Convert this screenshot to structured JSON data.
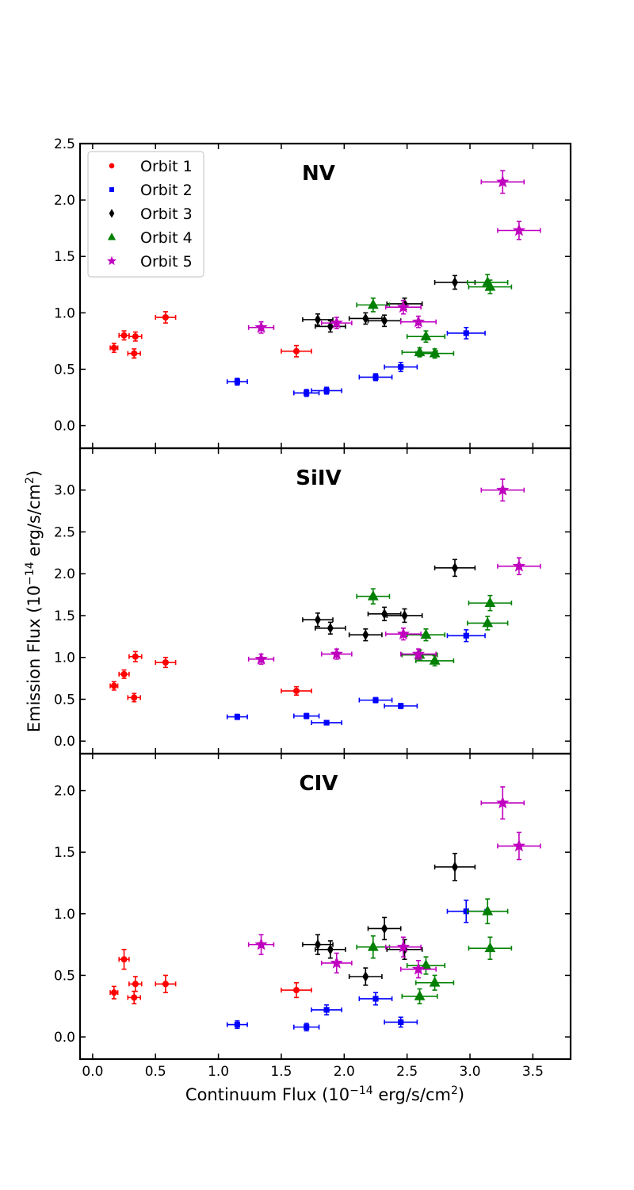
{
  "chart_data": {
    "type": "scatter",
    "xlabel": "Continuum Flux",
    "ylabel": "Emission Flux",
    "label_exponent": "−14",
    "label_prefix": "(10",
    "label_unit": " erg/s/cm",
    "label_unit_sup": "2",
    "label_suffix": ")",
    "xlim": [
      -0.1,
      3.8
    ],
    "xticks": [
      "0.0",
      "0.5",
      "1.0",
      "1.5",
      "2.0",
      "2.5",
      "3.0",
      "3.5"
    ],
    "legend": {
      "location": "top-left",
      "entries": [
        "Orbit 1",
        "Orbit 2",
        "Orbit 3",
        "Orbit 4",
        "Orbit 5"
      ]
    },
    "series_style": [
      {
        "name": "Orbit 1",
        "color": "#ff0000",
        "marker": "circle"
      },
      {
        "name": "Orbit 2",
        "color": "#0000ff",
        "marker": "square"
      },
      {
        "name": "Orbit 3",
        "color": "#000000",
        "marker": "diamond"
      },
      {
        "name": "Orbit 4",
        "color": "#008000",
        "marker": "triangle"
      },
      {
        "name": "Orbit 5",
        "color": "#bf00bf",
        "marker": "star"
      }
    ],
    "panels": [
      {
        "title": "NV",
        "ylim": [
          -0.2,
          2.5
        ],
        "yticks": [
          "0.0",
          "0.5",
          "1.0",
          "1.5",
          "2.0",
          "2.5"
        ],
        "series": [
          {
            "name": "Orbit 1",
            "points": [
              [
                0.17,
                0.69,
                0.03,
                0.04
              ],
              [
                0.25,
                0.8,
                0.04,
                0.04
              ],
              [
                0.33,
                0.64,
                0.05,
                0.04
              ],
              [
                0.34,
                0.79,
                0.05,
                0.04
              ],
              [
                0.58,
                0.96,
                0.08,
                0.05
              ],
              [
                1.62,
                0.66,
                0.12,
                0.05
              ]
            ]
          },
          {
            "name": "Orbit 2",
            "points": [
              [
                1.15,
                0.39,
                0.08,
                0.03
              ],
              [
                1.7,
                0.29,
                0.1,
                0.03
              ],
              [
                1.86,
                0.31,
                0.12,
                0.03
              ],
              [
                2.25,
                0.43,
                0.13,
                0.03
              ],
              [
                2.45,
                0.52,
                0.13,
                0.04
              ],
              [
                2.97,
                0.82,
                0.15,
                0.05
              ]
            ]
          },
          {
            "name": "Orbit 3",
            "points": [
              [
                1.79,
                0.94,
                0.12,
                0.05
              ],
              [
                1.89,
                0.88,
                0.12,
                0.05
              ],
              [
                2.17,
                0.95,
                0.13,
                0.05
              ],
              [
                2.32,
                0.93,
                0.13,
                0.05
              ],
              [
                2.48,
                1.08,
                0.14,
                0.05
              ],
              [
                2.88,
                1.27,
                0.16,
                0.06
              ]
            ]
          },
          {
            "name": "Orbit 4",
            "points": [
              [
                2.23,
                1.07,
                0.13,
                0.06
              ],
              [
                2.6,
                0.65,
                0.14,
                0.04
              ],
              [
                2.65,
                0.79,
                0.15,
                0.05
              ],
              [
                2.72,
                0.64,
                0.15,
                0.04
              ],
              [
                3.14,
                1.27,
                0.16,
                0.07
              ],
              [
                3.16,
                1.23,
                0.17,
                0.06
              ]
            ]
          },
          {
            "name": "Orbit 5",
            "points": [
              [
                1.34,
                0.87,
                0.1,
                0.05
              ],
              [
                1.94,
                0.91,
                0.12,
                0.05
              ],
              [
                2.47,
                1.05,
                0.14,
                0.06
              ],
              [
                2.59,
                0.92,
                0.14,
                0.05
              ],
              [
                3.26,
                2.16,
                0.17,
                0.1
              ],
              [
                3.39,
                1.73,
                0.17,
                0.08
              ]
            ]
          }
        ]
      },
      {
        "title": "SiIV",
        "ylim": [
          -0.15,
          3.5
        ],
        "yticks": [
          "0.0",
          "0.5",
          "1.0",
          "1.5",
          "2.0",
          "2.5",
          "3.0"
        ],
        "series": [
          {
            "name": "Orbit 1",
            "points": [
              [
                0.17,
                0.66,
                0.03,
                0.05
              ],
              [
                0.25,
                0.8,
                0.04,
                0.05
              ],
              [
                0.33,
                0.52,
                0.05,
                0.05
              ],
              [
                0.34,
                1.01,
                0.05,
                0.06
              ],
              [
                0.58,
                0.94,
                0.08,
                0.06
              ],
              [
                1.62,
                0.6,
                0.12,
                0.05
              ]
            ]
          },
          {
            "name": "Orbit 2",
            "points": [
              [
                1.15,
                0.29,
                0.08,
                0.03
              ],
              [
                1.7,
                0.3,
                0.1,
                0.03
              ],
              [
                1.86,
                0.22,
                0.12,
                0.02
              ],
              [
                2.25,
                0.49,
                0.13,
                0.03
              ],
              [
                2.45,
                0.42,
                0.13,
                0.03
              ],
              [
                2.97,
                1.26,
                0.15,
                0.07
              ]
            ]
          },
          {
            "name": "Orbit 3",
            "points": [
              [
                1.79,
                1.45,
                0.12,
                0.08
              ],
              [
                1.89,
                1.35,
                0.12,
                0.07
              ],
              [
                2.17,
                1.27,
                0.13,
                0.07
              ],
              [
                2.32,
                1.52,
                0.13,
                0.08
              ],
              [
                2.48,
                1.5,
                0.14,
                0.08
              ],
              [
                2.88,
                2.07,
                0.16,
                0.1
              ]
            ]
          },
          {
            "name": "Orbit 4",
            "points": [
              [
                2.23,
                1.73,
                0.13,
                0.09
              ],
              [
                2.6,
                1.03,
                0.14,
                0.06
              ],
              [
                2.65,
                1.27,
                0.15,
                0.07
              ],
              [
                2.72,
                0.96,
                0.15,
                0.06
              ],
              [
                3.14,
                1.41,
                0.16,
                0.08
              ],
              [
                3.16,
                1.65,
                0.17,
                0.09
              ]
            ]
          },
          {
            "name": "Orbit 5",
            "points": [
              [
                1.34,
                0.98,
                0.1,
                0.06
              ],
              [
                1.94,
                1.04,
                0.12,
                0.06
              ],
              [
                2.47,
                1.28,
                0.14,
                0.07
              ],
              [
                2.59,
                1.04,
                0.14,
                0.06
              ],
              [
                3.26,
                3.0,
                0.17,
                0.13
              ],
              [
                3.39,
                2.09,
                0.17,
                0.1
              ]
            ]
          }
        ]
      },
      {
        "title": "CIV",
        "ylim": [
          -0.18,
          2.3
        ],
        "yticks": [
          "0.0",
          "0.5",
          "1.0",
          "1.5",
          "2.0"
        ],
        "series": [
          {
            "name": "Orbit 1",
            "points": [
              [
                0.17,
                0.36,
                0.03,
                0.05
              ],
              [
                0.25,
                0.63,
                0.04,
                0.08
              ],
              [
                0.33,
                0.32,
                0.05,
                0.05
              ],
              [
                0.34,
                0.43,
                0.05,
                0.06
              ],
              [
                0.58,
                0.43,
                0.08,
                0.07
              ],
              [
                1.62,
                0.38,
                0.12,
                0.06
              ]
            ]
          },
          {
            "name": "Orbit 2",
            "points": [
              [
                1.15,
                0.1,
                0.08,
                0.03
              ],
              [
                1.7,
                0.08,
                0.1,
                0.03
              ],
              [
                1.86,
                0.22,
                0.12,
                0.04
              ],
              [
                2.25,
                0.31,
                0.13,
                0.05
              ],
              [
                2.45,
                0.12,
                0.13,
                0.04
              ],
              [
                2.97,
                1.02,
                0.15,
                0.09
              ]
            ]
          },
          {
            "name": "Orbit 3",
            "points": [
              [
                1.79,
                0.75,
                0.12,
                0.08
              ],
              [
                1.89,
                0.71,
                0.12,
                0.07
              ],
              [
                2.17,
                0.49,
                0.13,
                0.07
              ],
              [
                2.32,
                0.88,
                0.13,
                0.09
              ],
              [
                2.48,
                0.71,
                0.14,
                0.08
              ],
              [
                2.88,
                1.38,
                0.16,
                0.11
              ]
            ]
          },
          {
            "name": "Orbit 4",
            "points": [
              [
                2.23,
                0.73,
                0.13,
                0.09
              ],
              [
                2.6,
                0.33,
                0.14,
                0.06
              ],
              [
                2.65,
                0.58,
                0.15,
                0.07
              ],
              [
                2.72,
                0.44,
                0.15,
                0.06
              ],
              [
                3.14,
                1.02,
                0.16,
                0.1
              ],
              [
                3.16,
                0.72,
                0.17,
                0.09
              ]
            ]
          },
          {
            "name": "Orbit 5",
            "points": [
              [
                1.34,
                0.75,
                0.1,
                0.08
              ],
              [
                1.94,
                0.6,
                0.12,
                0.08
              ],
              [
                2.47,
                0.73,
                0.14,
                0.08
              ],
              [
                2.59,
                0.55,
                0.14,
                0.07
              ],
              [
                3.26,
                1.9,
                0.17,
                0.13
              ],
              [
                3.39,
                1.55,
                0.17,
                0.11
              ]
            ]
          }
        ]
      }
    ]
  }
}
